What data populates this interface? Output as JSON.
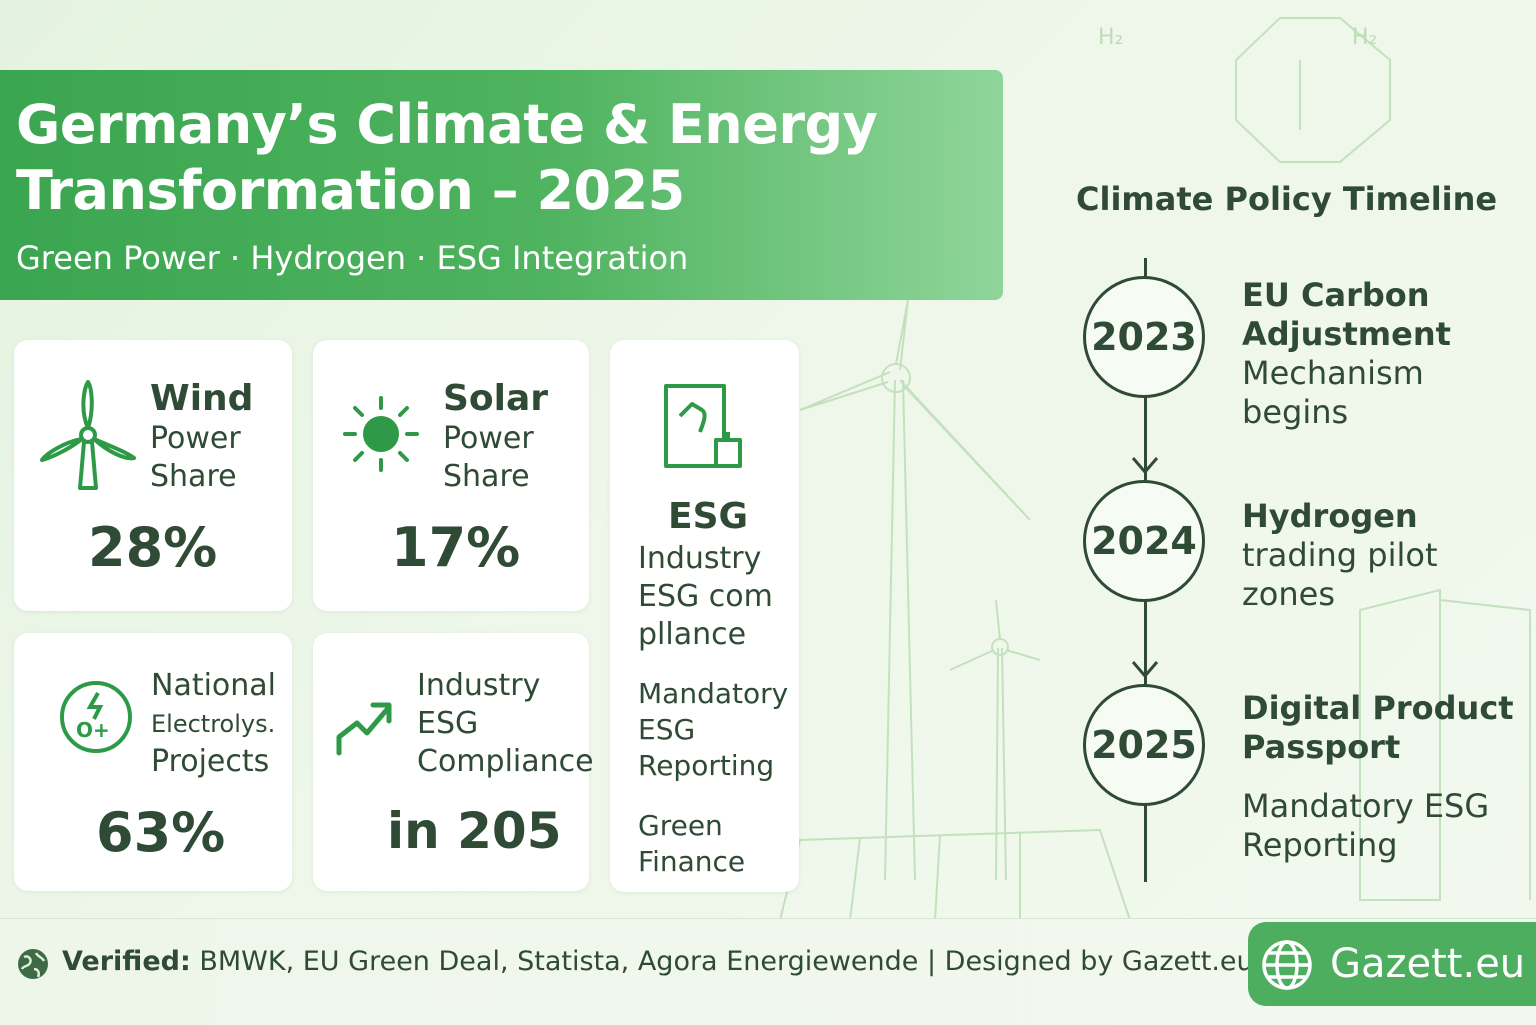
{
  "header": {
    "title_line1": "Germany’s Climate & Energy",
    "title_line2": "Transformation – 2025",
    "subtitle": "Green Power · Hydrogen · ESG Integration"
  },
  "background": {
    "h2_label_1": "H₂",
    "h2_label_2": "H₂"
  },
  "cards": {
    "wind": {
      "icon": "wind-turbine-icon",
      "title": "Wind",
      "line2": "Power",
      "line3": "Share",
      "value": "28%"
    },
    "solar": {
      "icon": "sun-icon",
      "title": "Solar",
      "line2": "Power",
      "line3": "Share",
      "value": "17%"
    },
    "esg": {
      "icon": "document-icon",
      "title": "ESG",
      "desc": [
        "Industry",
        "ESG com",
        "pllance"
      ],
      "item1": [
        "Mandatory",
        "ESG",
        "Reporting"
      ],
      "item2": [
        "Green",
        "Finance"
      ]
    },
    "electrolysis": {
      "icon": "hydrogen-icon",
      "line1": "National",
      "line2": "Electrolys.",
      "line3": "Projects",
      "value": "63%"
    },
    "industry": {
      "icon": "trend-up-icon",
      "line1": "Industry",
      "line2": "ESG",
      "line3": "Compliance",
      "value": "in 205"
    }
  },
  "timeline": {
    "title": "Climate Policy Timeline",
    "events": [
      {
        "year": "2023",
        "lines": [
          "EU Carbon",
          "Adjustment",
          "Mechanism",
          "begins"
        ],
        "bold_count": 2
      },
      {
        "year": "2024",
        "lines": [
          "Hydrogen",
          "trading pilot",
          "zones"
        ],
        "bold_count": 1
      },
      {
        "year": "2025",
        "lines": [
          "Digital Product",
          "Passport"
        ],
        "bold_count": 2,
        "extra": [
          "Mandatory ESG",
          "Reporting"
        ]
      }
    ]
  },
  "footer": {
    "icon": "globe-icon",
    "verified_label": "Verified:",
    "sources": "BMWK, EU Green Deal, Statista, Agora Energiewende | Designed by Gazett.eu",
    "brand_button": "Gazett.eu"
  },
  "colors": {
    "accent_green": "#3aa550",
    "icon_green": "#2e9a47",
    "text_dark": "#2f4a35",
    "card_bg": "#ffffff"
  }
}
